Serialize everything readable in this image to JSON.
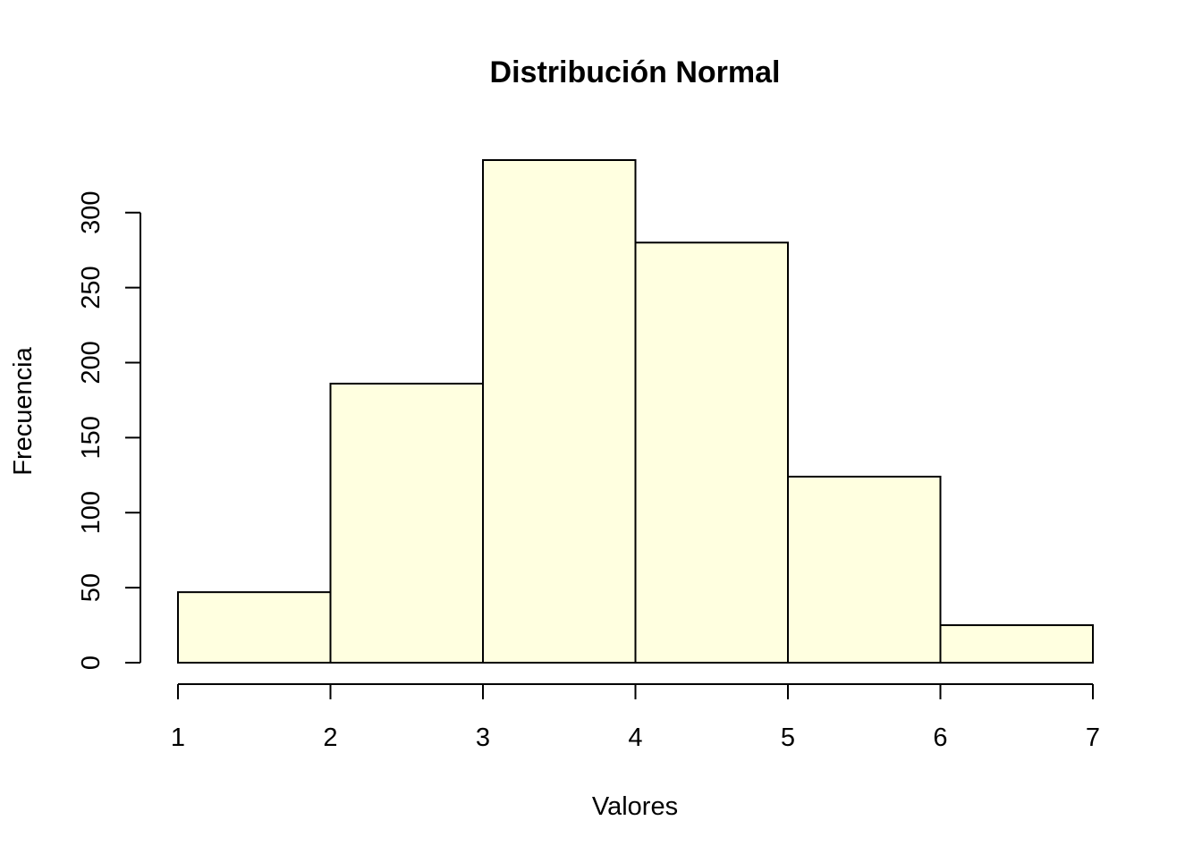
{
  "chart_data": {
    "type": "bar",
    "title": "Distribución Normal",
    "xlabel": "Valores",
    "ylabel": "Frecuencia",
    "bins": [
      {
        "x0": 1,
        "x1": 2,
        "count": 47
      },
      {
        "x0": 2,
        "x1": 3,
        "count": 186
      },
      {
        "x0": 3,
        "x1": 4,
        "count": 335
      },
      {
        "x0": 4,
        "x1": 5,
        "count": 280
      },
      {
        "x0": 5,
        "x1": 6,
        "count": 124
      },
      {
        "x0": 6,
        "x1": 7,
        "count": 25
      }
    ],
    "xlim": [
      1,
      7
    ],
    "ylim": [
      0,
      335
    ],
    "xticks": [
      "1",
      "2",
      "3",
      "4",
      "5",
      "6",
      "7"
    ],
    "yticks": [
      "0",
      "50",
      "100",
      "150",
      "200",
      "250",
      "300"
    ],
    "bar_fill": "#FFFFE0",
    "bar_stroke": "#000000",
    "grid": false,
    "legend": "none"
  }
}
